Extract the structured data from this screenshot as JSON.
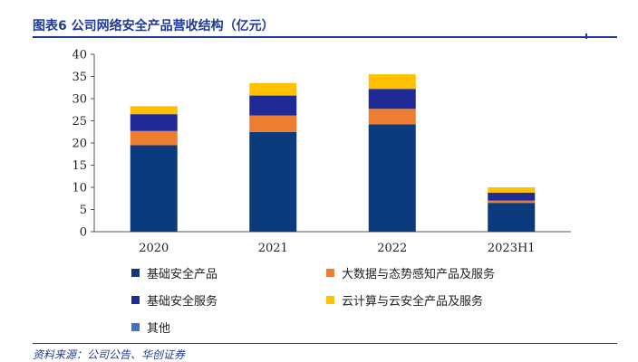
{
  "header": {
    "title": "图表6 公司网络安全产品营收结构（亿元）"
  },
  "footer": {
    "source": "资料来源：公司公告、华创证券"
  },
  "chart_data": {
    "type": "bar",
    "stacked": true,
    "categories": [
      "2020",
      "2021",
      "2022",
      "2023H1"
    ],
    "ylim": [
      0,
      40
    ],
    "yticks": [
      0,
      5,
      10,
      15,
      20,
      25,
      30,
      35,
      40
    ],
    "grid": false,
    "legend_position": "bottom",
    "series": [
      {
        "name": "基础安全产品",
        "color": "#0b3a7d",
        "values": [
          19.5,
          22.5,
          24.2,
          6.5
        ]
      },
      {
        "name": "大数据与态势感知产品及服务",
        "color": "#ed7d31",
        "values": [
          3.2,
          3.7,
          3.5,
          0.5
        ]
      },
      {
        "name": "基础安全服务",
        "color": "#1f2a96",
        "values": [
          3.8,
          4.5,
          4.5,
          1.8
        ]
      },
      {
        "name": "云计算与云安全产品及服务",
        "color": "#ffc000",
        "values": [
          1.8,
          2.8,
          3.3,
          1.2
        ]
      },
      {
        "name": "其他",
        "color": "#4472c4",
        "values": [
          0,
          0,
          0,
          0
        ]
      }
    ]
  }
}
